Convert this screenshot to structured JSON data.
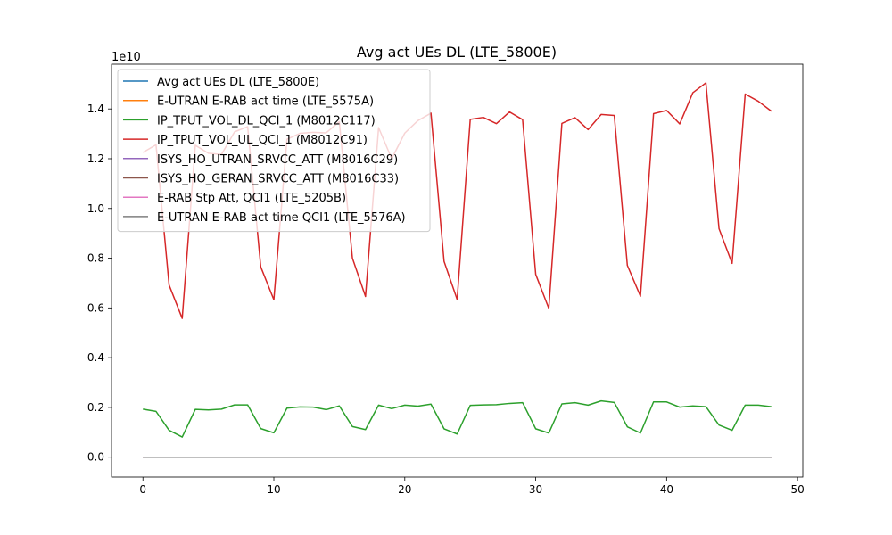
{
  "chart_data": {
    "type": "line",
    "title": "Avg act UEs DL (LTE_5800E)",
    "xlabel": "",
    "ylabel": "",
    "y_scale_label": "1e10",
    "y_scale": 10000000000,
    "xlim": [
      -2.4,
      50.4
    ],
    "ylim": [
      -0.08,
      1.58
    ],
    "x_ticks": [
      0,
      10,
      20,
      30,
      40,
      50
    ],
    "x_tick_labels": [
      "0",
      "10",
      "20",
      "30",
      "40",
      "50"
    ],
    "y_ticks": [
      0.0,
      0.2,
      0.4,
      0.6,
      0.8,
      1.0,
      1.2,
      1.4
    ],
    "y_tick_labels": [
      "0.0",
      "0.2",
      "0.4",
      "0.6",
      "0.8",
      "1.0",
      "1.2",
      "1.4"
    ],
    "grid": false,
    "legend_position": "top-left",
    "x": [
      0,
      1,
      2,
      3,
      4,
      5,
      6,
      7,
      8,
      9,
      10,
      11,
      12,
      13,
      14,
      15,
      16,
      17,
      18,
      19,
      20,
      21,
      22,
      23,
      24,
      25,
      26,
      27,
      28,
      29,
      30,
      31,
      32,
      33,
      34,
      35,
      36,
      37,
      38,
      39,
      40,
      41,
      42,
      43,
      44,
      45,
      46,
      47,
      48
    ],
    "series": [
      {
        "name": "Avg act UEs DL (LTE_5800E)",
        "color": "#1f77b4",
        "values": [
          0,
          0,
          0,
          0,
          0,
          0,
          0,
          0,
          0,
          0,
          0,
          0,
          0,
          0,
          0,
          0,
          0,
          0,
          0,
          0,
          0,
          0,
          0,
          0,
          0,
          0,
          0,
          0,
          0,
          0,
          0,
          0,
          0,
          0,
          0,
          0,
          0,
          0,
          0,
          0,
          0,
          0,
          0,
          0,
          0,
          0,
          0,
          0,
          0
        ]
      },
      {
        "name": "E-UTRAN E-RAB act time (LTE_5575A)",
        "color": "#ff7f0e",
        "values": [
          0,
          0,
          0,
          0,
          0,
          0,
          0,
          0,
          0,
          0,
          0,
          0,
          0,
          0,
          0,
          0,
          0,
          0,
          0,
          0,
          0,
          0,
          0,
          0,
          0,
          0,
          0,
          0,
          0,
          0,
          0,
          0,
          0,
          0,
          0,
          0,
          0,
          0,
          0,
          0,
          0,
          0,
          0,
          0,
          0,
          0,
          0,
          0,
          0
        ]
      },
      {
        "name": "IP_TPUT_VOL_DL_QCI_1 (M8012C117)",
        "color": "#2ca02c",
        "values": [
          0.193,
          0.184,
          0.108,
          0.081,
          0.192,
          0.19,
          0.193,
          0.21,
          0.21,
          0.115,
          0.098,
          0.197,
          0.202,
          0.201,
          0.191,
          0.206,
          0.123,
          0.111,
          0.209,
          0.195,
          0.209,
          0.205,
          0.213,
          0.114,
          0.093,
          0.208,
          0.21,
          0.211,
          0.216,
          0.219,
          0.114,
          0.097,
          0.214,
          0.219,
          0.209,
          0.226,
          0.22,
          0.122,
          0.097,
          0.222,
          0.222,
          0.201,
          0.206,
          0.203,
          0.129,
          0.108,
          0.209,
          0.209,
          0.203
        ]
      },
      {
        "name": "IP_TPUT_VOL_UL_QCI_1 (M8012C91)",
        "color": "#d62728",
        "values": [
          1.225,
          1.256,
          0.692,
          0.558,
          1.254,
          1.222,
          1.217,
          1.308,
          1.329,
          0.765,
          0.633,
          1.278,
          1.302,
          1.306,
          1.304,
          1.349,
          0.8,
          0.646,
          1.325,
          1.2,
          1.303,
          1.353,
          1.383,
          0.787,
          0.634,
          1.358,
          1.366,
          1.341,
          1.388,
          1.357,
          0.735,
          0.598,
          1.342,
          1.365,
          1.317,
          1.378,
          1.374,
          0.771,
          0.647,
          1.381,
          1.394,
          1.34,
          1.465,
          1.505,
          0.919,
          0.779,
          1.46,
          1.431,
          1.391
        ]
      },
      {
        "name": "ISYS_HO_UTRAN_SRVCC_ATT (M8016C29)",
        "color": "#9467bd",
        "values": [
          0,
          0,
          0,
          0,
          0,
          0,
          0,
          0,
          0,
          0,
          0,
          0,
          0,
          0,
          0,
          0,
          0,
          0,
          0,
          0,
          0,
          0,
          0,
          0,
          0,
          0,
          0,
          0,
          0,
          0,
          0,
          0,
          0,
          0,
          0,
          0,
          0,
          0,
          0,
          0,
          0,
          0,
          0,
          0,
          0,
          0,
          0,
          0,
          0
        ]
      },
      {
        "name": "ISYS_HO_GERAN_SRVCC_ATT (M8016C33)",
        "color": "#8c564b",
        "values": [
          0,
          0,
          0,
          0,
          0,
          0,
          0,
          0,
          0,
          0,
          0,
          0,
          0,
          0,
          0,
          0,
          0,
          0,
          0,
          0,
          0,
          0,
          0,
          0,
          0,
          0,
          0,
          0,
          0,
          0,
          0,
          0,
          0,
          0,
          0,
          0,
          0,
          0,
          0,
          0,
          0,
          0,
          0,
          0,
          0,
          0,
          0,
          0,
          0
        ]
      },
      {
        "name": "E-RAB Stp Att, QCI1 (LTE_5205B)",
        "color": "#e377c2",
        "values": [
          0,
          0,
          0,
          0,
          0,
          0,
          0,
          0,
          0,
          0,
          0,
          0,
          0,
          0,
          0,
          0,
          0,
          0,
          0,
          0,
          0,
          0,
          0,
          0,
          0,
          0,
          0,
          0,
          0,
          0,
          0,
          0,
          0,
          0,
          0,
          0,
          0,
          0,
          0,
          0,
          0,
          0,
          0,
          0,
          0,
          0,
          0,
          0,
          0
        ]
      },
      {
        "name": "E-UTRAN E-RAB act time QCI1 (LTE_5576A)",
        "color": "#7f7f7f",
        "values": [
          0,
          0,
          0,
          0,
          0,
          0,
          0,
          0,
          0,
          0,
          0,
          0,
          0,
          0,
          0,
          0,
          0,
          0,
          0,
          0,
          0,
          0,
          0,
          0,
          0,
          0,
          0,
          0,
          0,
          0,
          0,
          0,
          0,
          0,
          0,
          0,
          0,
          0,
          0,
          0,
          0,
          0,
          0,
          0,
          0,
          0,
          0,
          0,
          0
        ]
      }
    ]
  }
}
